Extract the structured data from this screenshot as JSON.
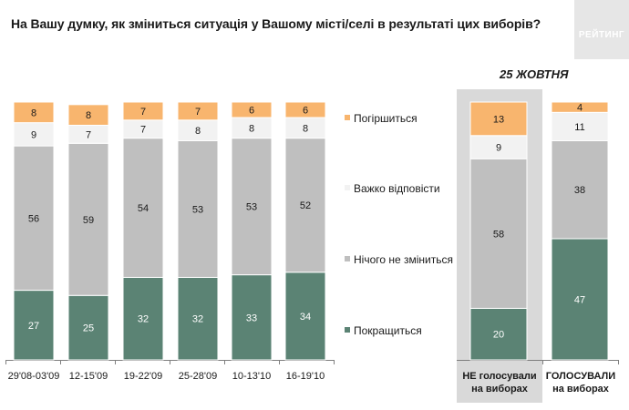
{
  "title": "На Вашу думку, як зміниться ситуація у Вашому місті/селі в результаті цих виборів?",
  "logo_text": "РЕЙТИНГ",
  "comparison_title": "25 ЖОВТНЯ",
  "colors": {
    "worse": "#f8b56e",
    "hard_to_say": "#f2f2f2",
    "no_change": "#bfbfbf",
    "better": "#5b8374",
    "compare_bg": "#d9d9d9"
  },
  "legend": [
    {
      "key": "worse",
      "label": "Погіршиться"
    },
    {
      "key": "hard_to_say",
      "label": "Важко відповісти"
    },
    {
      "key": "no_change",
      "label": "Нічого не зміниться"
    },
    {
      "key": "better",
      "label": "Покращиться"
    }
  ],
  "chart_data": [
    {
      "type": "bar",
      "stacked": true,
      "title": "",
      "categories": [
        "29'08-03'09",
        "12-15'09",
        "19-22'09",
        "25-28'09",
        "10-13'10",
        "16-19'10"
      ],
      "series": [
        {
          "name": "Покращиться",
          "color": "#5b8374",
          "values": [
            27,
            25,
            32,
            32,
            33,
            34
          ]
        },
        {
          "name": "Нічого не зміниться",
          "color": "#bfbfbf",
          "values": [
            56,
            59,
            54,
            53,
            53,
            52
          ]
        },
        {
          "name": "Важко відповісти",
          "color": "#f2f2f2",
          "values": [
            9,
            7,
            7,
            8,
            8,
            8
          ]
        },
        {
          "name": "Погіршиться",
          "color": "#f8b56e",
          "values": [
            8,
            8,
            7,
            7,
            6,
            6
          ]
        }
      ],
      "ylim": [
        0,
        100
      ]
    },
    {
      "type": "bar",
      "stacked": true,
      "title": "25 ЖОВТНЯ",
      "categories": [
        "НЕ голосували на виборах",
        "ГОЛОСУВАЛИ на виборах"
      ],
      "category_lines": [
        [
          "НЕ голосували",
          "на виборах"
        ],
        [
          "ГОЛОСУВАЛИ",
          "на виборах"
        ]
      ],
      "series": [
        {
          "name": "Покращиться",
          "color": "#5b8374",
          "values": [
            20,
            47
          ]
        },
        {
          "name": "Нічого не зміниться",
          "color": "#bfbfbf",
          "values": [
            58,
            38
          ]
        },
        {
          "name": "Важко відповісти",
          "color": "#f2f2f2",
          "values": [
            9,
            11
          ]
        },
        {
          "name": "Погіршиться",
          "color": "#f8b56e",
          "values": [
            13,
            4
          ]
        }
      ],
      "ylim": [
        0,
        100
      ]
    }
  ]
}
